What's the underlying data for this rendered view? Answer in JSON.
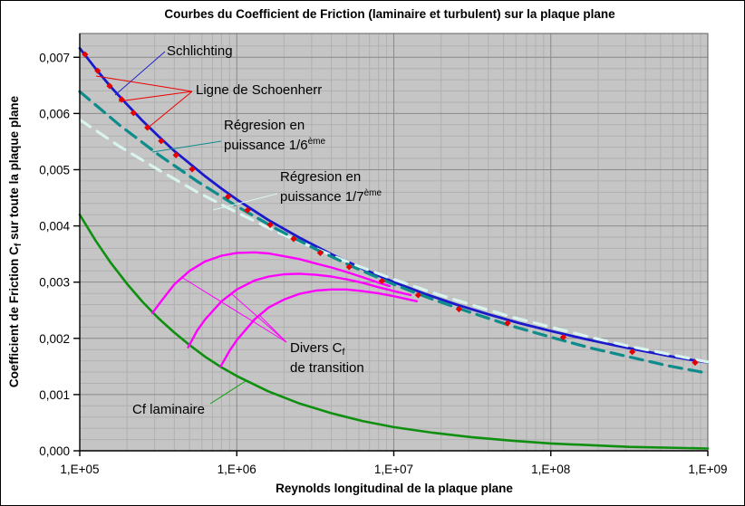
{
  "title": "Courbes du Coefficient de Friction (laminaire et turbulent) sur la plaque plane",
  "colors": {
    "plot_background": "#c5c5c5",
    "grid_minor": "#b0b0b0",
    "grid_major": "#8a8a8a",
    "plot_border": "#5f5f5f",
    "axis_line": "#000000",
    "schlichting": "#1a1acc",
    "schoenherr": "#e60000",
    "regression_1_6": "#0e8b8b",
    "regression_1_7": "#d9f3ee",
    "laminar": "#0f8f0f",
    "transition": "#ff00ff"
  },
  "chart_data": {
    "type": "line",
    "title": "Courbes du Coefficient de Friction (laminaire et turbulent) sur la plaque plane",
    "xlabel": "Reynolds longitudinal de la plaque plane",
    "ylabel": "Coefficient de Friction Cf sur toute la plaque plane",
    "ylabel_parts": {
      "pre": "Coefficient de Friction C",
      "sub": "f",
      "post": " sur toute la plaque plane"
    },
    "x_scale": "log",
    "xlim": [
      100000,
      1000000000
    ],
    "ylim": [
      0,
      0.00743
    ],
    "grid": "major+minor, gray plot area",
    "legend_position": "inline annotations with leader lines",
    "x_ticks": [
      {
        "re": 100000,
        "label": "1,E+05"
      },
      {
        "re": 1000000,
        "label": "1,E+06"
      },
      {
        "re": 10000000,
        "label": "1,E+07"
      },
      {
        "re": 100000000,
        "label": "1,E+08"
      },
      {
        "re": 1000000000,
        "label": "1,E+09"
      }
    ],
    "y_ticks": [
      {
        "v": 0.0,
        "label": "0,000"
      },
      {
        "v": 0.001,
        "label": "0,001"
      },
      {
        "v": 0.002,
        "label": "0,002"
      },
      {
        "v": 0.003,
        "label": "0,003"
      },
      {
        "v": 0.004,
        "label": "0,004"
      },
      {
        "v": 0.005,
        "label": "0,005"
      },
      {
        "v": 0.006,
        "label": "0,006"
      },
      {
        "v": 0.007,
        "label": "0,007"
      }
    ],
    "series": [
      {
        "id": "laminaire",
        "name": "Cf laminaire",
        "color": "#0f8f0f",
        "width": 2.6,
        "dash": null,
        "points": [
          [
            100000,
            0.0042
          ],
          [
            126000,
            0.00374
          ],
          [
            158000,
            0.00334
          ],
          [
            200000,
            0.00297
          ],
          [
            251000,
            0.00265
          ],
          [
            316000,
            0.00236
          ],
          [
            398000,
            0.00211
          ],
          [
            501000,
            0.00188
          ],
          [
            631000,
            0.00167
          ],
          [
            794000,
            0.00149
          ],
          [
            1000000,
            0.00133
          ],
          [
            1580000,
            0.00106
          ],
          [
            2510000,
            0.00084
          ],
          [
            3980000,
            0.00067
          ],
          [
            6310000,
            0.00053
          ],
          [
            10000000,
            0.00042
          ],
          [
            17800000,
            0.00032
          ],
          [
            31600000,
            0.00024
          ],
          [
            56200000,
            0.00018
          ],
          [
            100000000,
            0.00013
          ],
          [
            316000000,
            7e-05
          ],
          [
            1000000000,
            4e-05
          ]
        ]
      },
      {
        "id": "transition-1",
        "name": "Cf de transition 1",
        "color": "#ff00ff",
        "width": 2.4,
        "dash": null,
        "points": [
          [
            290000,
            0.00245
          ],
          [
            330000,
            0.00266
          ],
          [
            400000,
            0.00296
          ],
          [
            500000,
            0.0032
          ],
          [
            630000,
            0.00337
          ],
          [
            800000,
            0.00347
          ],
          [
            1000000,
            0.00352
          ],
          [
            1300000,
            0.00353
          ],
          [
            1600000,
            0.00351
          ],
          [
            2000000,
            0.00346
          ],
          [
            2500000,
            0.00341
          ],
          [
            3200000,
            0.00333
          ],
          [
            4000000,
            0.00326
          ],
          [
            5000000,
            0.00318
          ],
          [
            6300000,
            0.00309
          ],
          [
            8000000,
            0.00299
          ],
          [
            9400000,
            0.00293
          ]
        ]
      },
      {
        "id": "transition-2",
        "name": "Cf de transition 2",
        "color": "#ff00ff",
        "width": 2.4,
        "dash": null,
        "points": [
          [
            490000,
            0.00184
          ],
          [
            560000,
            0.00214
          ],
          [
            630000,
            0.00234
          ],
          [
            800000,
            0.00266
          ],
          [
            1000000,
            0.00287
          ],
          [
            1300000,
            0.00303
          ],
          [
            1600000,
            0.0031
          ],
          [
            2000000,
            0.00314
          ],
          [
            2500000,
            0.00315
          ],
          [
            3200000,
            0.00313
          ],
          [
            4000000,
            0.0031
          ],
          [
            5000000,
            0.00305
          ],
          [
            6300000,
            0.00299
          ],
          [
            8000000,
            0.00291
          ],
          [
            10000000,
            0.00284
          ],
          [
            12800000,
            0.00277
          ]
        ]
      },
      {
        "id": "transition-3",
        "name": "Cf de transition 3",
        "color": "#ff00ff",
        "width": 2.4,
        "dash": null,
        "points": [
          [
            790000,
            0.0015
          ],
          [
            900000,
            0.00178
          ],
          [
            1000000,
            0.00197
          ],
          [
            1300000,
            0.00234
          ],
          [
            1600000,
            0.00255
          ],
          [
            2000000,
            0.00269
          ],
          [
            2500000,
            0.00279
          ],
          [
            3200000,
            0.00285
          ],
          [
            4000000,
            0.00287
          ],
          [
            5000000,
            0.00287
          ],
          [
            6300000,
            0.00284
          ],
          [
            8000000,
            0.0028
          ],
          [
            10000000,
            0.00275
          ],
          [
            14000000,
            0.00266
          ]
        ]
      },
      {
        "id": "schlichting",
        "name": "Schlichting",
        "color": "#1a1acc",
        "width": 2.8,
        "dash": null,
        "points": [
          [
            100000,
            0.00716
          ],
          [
            126000,
            0.0068
          ],
          [
            158000,
            0.00647
          ],
          [
            200000,
            0.00616
          ],
          [
            251000,
            0.00587
          ],
          [
            316000,
            0.0056
          ],
          [
            398000,
            0.00534
          ],
          [
            501000,
            0.00511
          ],
          [
            631000,
            0.00488
          ],
          [
            794000,
            0.00467
          ],
          [
            1000000,
            0.00447
          ],
          [
            1580000,
            0.00411
          ],
          [
            2510000,
            0.00379
          ],
          [
            3980000,
            0.0035
          ],
          [
            6310000,
            0.00324
          ],
          [
            10000000,
            0.003
          ],
          [
            15800000,
            0.00279
          ],
          [
            25100000,
            0.0026
          ],
          [
            39800000,
            0.00243
          ],
          [
            63100000,
            0.00227
          ],
          [
            100000000,
            0.00213
          ],
          [
            158000000,
            0.002
          ],
          [
            251000000,
            0.00188
          ],
          [
            398000000,
            0.00177
          ],
          [
            631000000,
            0.00166
          ],
          [
            1000000000,
            0.00157
          ]
        ]
      },
      {
        "id": "regression-1-7",
        "name": "Régresion en puissance 1/7ème",
        "color": "#d9f3ee",
        "width": 3.2,
        "dash": "14,9",
        "points": [
          [
            100000,
            0.00589
          ],
          [
            178000,
            0.00542
          ],
          [
            316000,
            0.005
          ],
          [
            562000,
            0.0046
          ],
          [
            1000000,
            0.00424
          ],
          [
            1780000,
            0.0039
          ],
          [
            3160000,
            0.0036
          ],
          [
            5620000,
            0.00331
          ],
          [
            10000000,
            0.00305
          ],
          [
            17800000,
            0.00281
          ],
          [
            31600000,
            0.00259
          ],
          [
            56200000,
            0.00238
          ],
          [
            100000000,
            0.0022
          ],
          [
            178000000,
            0.00202
          ],
          [
            316000000,
            0.00186
          ],
          [
            562000000,
            0.00172
          ],
          [
            1000000000,
            0.00158
          ]
        ]
      },
      {
        "id": "regression-1-6",
        "name": "Régresion en puissance 1/6ème",
        "color": "#0e8b8b",
        "width": 3.2,
        "dash": "14,8",
        "points": [
          [
            100000,
            0.00639
          ],
          [
            178000,
            0.0058
          ],
          [
            316000,
            0.00527
          ],
          [
            562000,
            0.00479
          ],
          [
            1000000,
            0.00435
          ],
          [
            1780000,
            0.00395
          ],
          [
            3160000,
            0.00359
          ],
          [
            5620000,
            0.00326
          ],
          [
            10000000,
            0.00296
          ],
          [
            17800000,
            0.00269
          ],
          [
            31600000,
            0.00245
          ],
          [
            56200000,
            0.00222
          ],
          [
            100000000,
            0.00202
          ],
          [
            178000000,
            0.00183
          ],
          [
            316000000,
            0.00167
          ],
          [
            562000000,
            0.00151
          ],
          [
            1000000000,
            0.00138
          ]
        ]
      }
    ],
    "scatter": {
      "id": "schoenherr",
      "name": "Ligne de Schoenherr",
      "color": "#e60000",
      "marker": "diamond",
      "size": 3.6,
      "points": [
        [
          108000,
          0.00705
        ],
        [
          130000,
          0.00676
        ],
        [
          155000,
          0.00649
        ],
        [
          185000,
          0.00625
        ],
        [
          220000,
          0.00601
        ],
        [
          270000,
          0.00575
        ],
        [
          330000,
          0.00551
        ],
        [
          410000,
          0.00526
        ],
        [
          520000,
          0.00501
        ],
        [
          880000,
          0.00452
        ],
        [
          1170000,
          0.00428
        ],
        [
          1630000,
          0.00402
        ],
        [
          2300000,
          0.00377
        ],
        [
          3400000,
          0.00352
        ],
        [
          5200000,
          0.00327
        ],
        [
          8400000,
          0.00302
        ],
        [
          14300000,
          0.00277
        ],
        [
          26000000,
          0.00252
        ],
        [
          53000000,
          0.00227
        ],
        [
          120000000,
          0.00202
        ],
        [
          330000000,
          0.00176
        ],
        [
          830000000,
          0.00157
        ]
      ]
    }
  },
  "annotations": {
    "schlichting": {
      "text": "Schlichting",
      "color": "#2222cc"
    },
    "schoenherr": {
      "text": "Ligne de Schoenherr",
      "color": "#ee0000"
    },
    "reg16": {
      "line1": "Régresion en",
      "line2": "puissance 1/6",
      "sup": "ème",
      "color": "#0e8b8b"
    },
    "reg17": {
      "line1": "Régresion en",
      "line2": "puissance 1/7",
      "sup": "ème",
      "color": "#d9f3ee"
    },
    "divers": {
      "line1_pre": "Divers C",
      "line1_sub": "f",
      "line2": "de transition",
      "color": "#ff00ff"
    },
    "laminaire": {
      "text": "Cf laminaire",
      "color": "#12a012"
    }
  },
  "leaders": [
    {
      "name": "schlichting-pointer",
      "color": "#2222cc",
      "pts": [
        [
          182,
          57
        ],
        [
          127,
          105
        ]
      ]
    },
    {
      "name": "schoenherr-pointer-1",
      "color": "#ee0000",
      "pts": [
        [
          212,
          101
        ],
        [
          106,
          84
        ]
      ]
    },
    {
      "name": "schoenherr-pointer-2",
      "color": "#ee0000",
      "pts": [
        [
          212,
          101
        ],
        [
          131,
          112
        ]
      ]
    },
    {
      "name": "schoenherr-pointer-3",
      "color": "#ee0000",
      "pts": [
        [
          212,
          101
        ],
        [
          161,
          143
        ]
      ]
    },
    {
      "name": "reg16-pointer",
      "color": "#0e8b8b",
      "pts": [
        [
          244,
          156
        ],
        [
          168,
          168
        ]
      ]
    },
    {
      "name": "reg17-pointer",
      "color": "#d9f3ee",
      "pts": [
        [
          306,
          214
        ],
        [
          235,
          232
        ]
      ]
    },
    {
      "name": "divers-pointer-1",
      "color": "#ff00ff",
      "pts": [
        [
          316,
          378
        ],
        [
          200,
          306
        ]
      ]
    },
    {
      "name": "divers-pointer-2",
      "color": "#ff00ff",
      "pts": [
        [
          316,
          378
        ],
        [
          256,
          325
        ]
      ]
    },
    {
      "name": "divers-pointer-3",
      "color": "#ff00ff",
      "pts": [
        [
          316,
          378
        ],
        [
          287,
          349
        ]
      ]
    },
    {
      "name": "laminaire-pointer",
      "color": "#12a012",
      "pts": [
        [
          232,
          446
        ],
        [
          271,
          421
        ]
      ]
    }
  ]
}
